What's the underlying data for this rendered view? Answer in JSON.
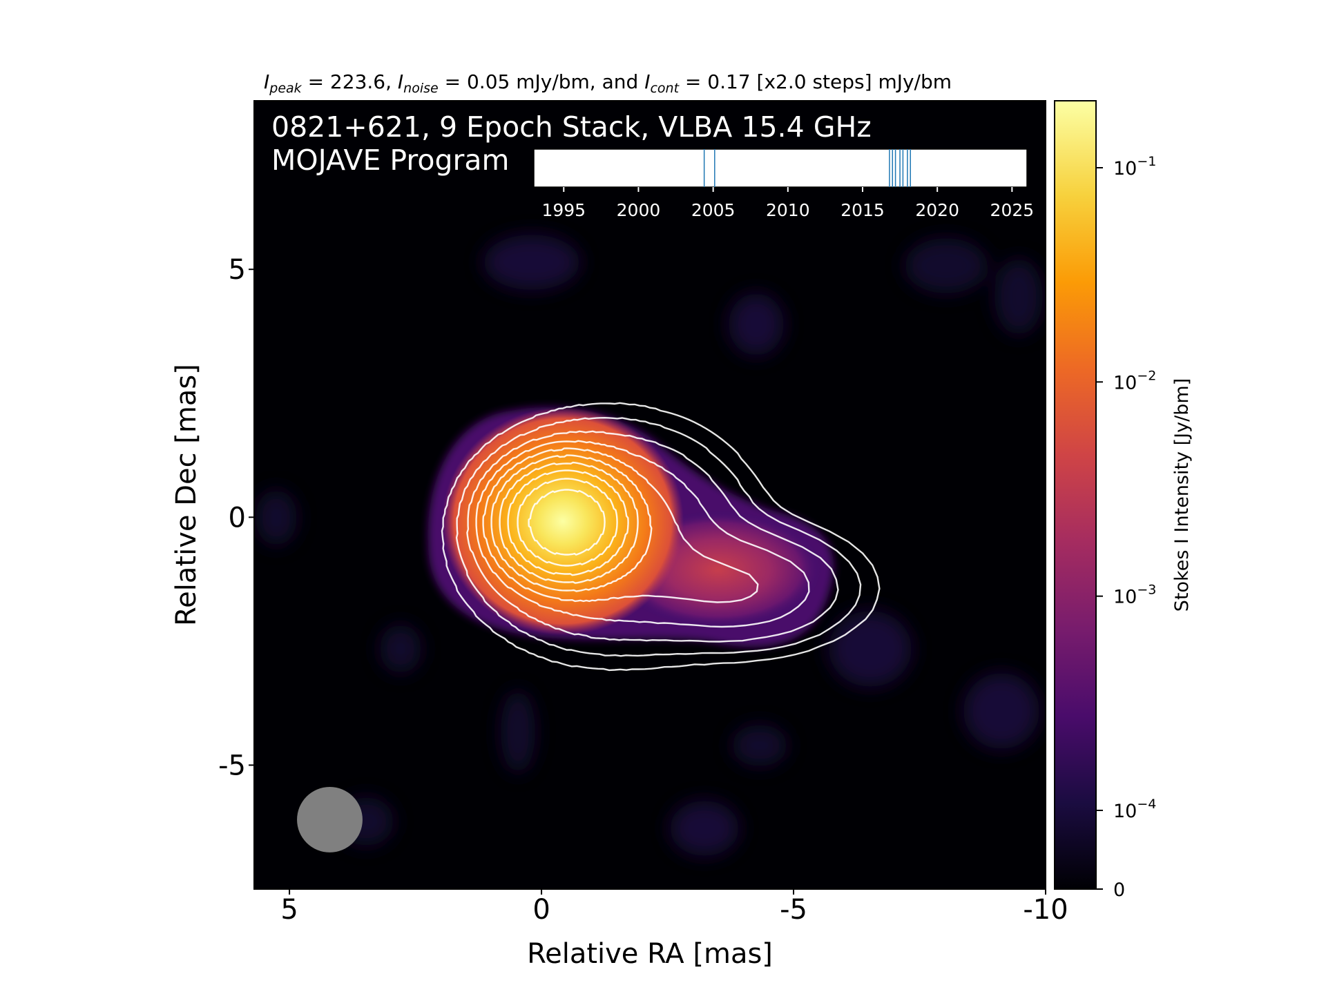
{
  "header": {
    "parts": [
      {
        "text": "I",
        "italic": true
      },
      {
        "text": "peak",
        "italic": true,
        "sub": true
      },
      {
        "text": " = 223.6, "
      },
      {
        "text": "I",
        "italic": true
      },
      {
        "text": "noise",
        "italic": true,
        "sub": true
      },
      {
        "text": " = 0.05 mJy/bm, and "
      },
      {
        "text": "I",
        "italic": true
      },
      {
        "text": "cont",
        "italic": true,
        "sub": true
      },
      {
        "text": " = 0.17 [x2.0 steps] mJy/bm"
      }
    ]
  },
  "overlay": {
    "line1": "0821+621, 9 Epoch Stack, VLBA 15.4 GHz",
    "line2": "MOJAVE Program"
  },
  "colorbar": {
    "label": "Stokes I Intensity [Jy/bm]",
    "ticks": [
      {
        "base": "10",
        "exp": "−1",
        "value": 0.1
      },
      {
        "base": "10",
        "exp": "−2",
        "value": 0.01
      },
      {
        "base": "10",
        "exp": "−3",
        "value": 0.001
      },
      {
        "base": "10",
        "exp": "−4",
        "value": 0.0001
      },
      {
        "base": "0",
        "exp": "",
        "value": 0
      }
    ],
    "colormap": "inferno",
    "colors": [
      "#000004",
      "#1b0c41",
      "#4a0c6b",
      "#781c6d",
      "#a52c60",
      "#cf4446",
      "#ed6925",
      "#fb9b06",
      "#f7d13d",
      "#fcffa4"
    ]
  },
  "chart_data": {
    "type": "heatmap",
    "xlabel": "Relative RA [mas]",
    "ylabel": "Relative Dec [mas]",
    "xlim": [
      5.7,
      -10.0
    ],
    "ylim": [
      -7.5,
      8.4
    ],
    "xticks": [
      {
        "value": 5,
        "label": "5"
      },
      {
        "value": 0,
        "label": "0"
      },
      {
        "value": -5,
        "label": "-5"
      },
      {
        "value": -10,
        "label": "-10"
      }
    ],
    "yticks": [
      {
        "value": 5,
        "label": "5"
      },
      {
        "value": 0,
        "label": "0"
      },
      {
        "value": -5,
        "label": "-5"
      }
    ],
    "peak_position_mas": [
      -0.5,
      -0.1
    ],
    "beam": {
      "center_mas": [
        4.2,
        -6.1
      ],
      "major_mas": 1.3,
      "minor_mas": 1.3,
      "color": "#808080"
    },
    "contour_color": "#ffffff",
    "epoch_timeline": {
      "xlim": [
        1993,
        2026
      ],
      "ticks": [
        1995,
        2000,
        2005,
        2010,
        2015,
        2020,
        2025
      ],
      "epochs": [
        2004.4,
        2005.1,
        2016.8,
        2017.0,
        2017.2,
        2017.5,
        2017.7,
        2018.0,
        2018.2
      ],
      "line_color": "#1f77b4"
    }
  }
}
